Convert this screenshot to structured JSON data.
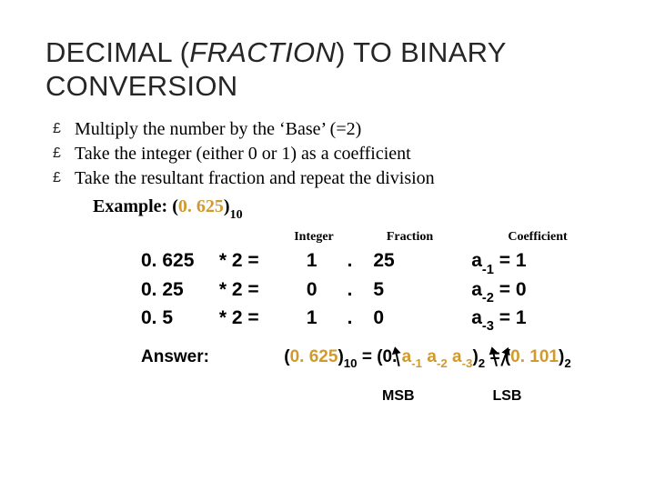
{
  "title": {
    "pre": "DECIMAL (",
    "mid": "FRACTION",
    "post": ") TO BINARY CONVERSION"
  },
  "bullets": [
    "Multiply the number by the ‘Base’ (=2)",
    "Take the integer (either 0 or 1) as a coefficient",
    "Take the resultant fraction and repeat the division"
  ],
  "example": {
    "label": "Example: (",
    "orange": "0. 625",
    "close": ")",
    "sub": "10"
  },
  "headers": {
    "int": "Integer",
    "frac": "Fraction",
    "coef": "Coefficient"
  },
  "rows": [
    {
      "a": "0. 625",
      "op": "* 2 =",
      "int": "1",
      "dot": ".",
      "frac": "25",
      "coef_a": "a",
      "coef_sub": "-1",
      "coef_eq": " = 1"
    },
    {
      "a": "0. 25",
      "op": "* 2 =",
      "int": "0",
      "dot": ".",
      "frac": "5",
      "coef_a": "a",
      "coef_sub": "-2",
      "coef_eq": " = 0"
    },
    {
      "a": "0. 5",
      "op": "* 2 =",
      "int": "1",
      "dot": ".",
      "frac": "0",
      "coef_a": "a",
      "coef_sub": "-3",
      "coef_eq": " = 1"
    }
  ],
  "answer": {
    "label": "Answer:",
    "p1_open": "(",
    "p1_orange": "0. 625",
    "p1_close": ")",
    "p1_sub": "10",
    "eq1": " = (",
    "p2_pre": "0. ",
    "a1": "a",
    "a1_sub": "-1",
    "sp1": " ",
    "a2": "a",
    "a2_sub": "-2",
    "sp2": " ",
    "a3": "a",
    "a3_sub": "-3",
    "p2_close": ")",
    "p2_sub": "2",
    "eq2": " = (",
    "p3_orange": "0. 101",
    "p3_close": ")",
    "p3_sub": "2"
  },
  "bitlabels": {
    "msb": "MSB",
    "lsb": "LSB"
  },
  "colors": {
    "orange": "#d09a2e",
    "text": "#000000",
    "bg": "#ffffff",
    "title": "#262626"
  }
}
